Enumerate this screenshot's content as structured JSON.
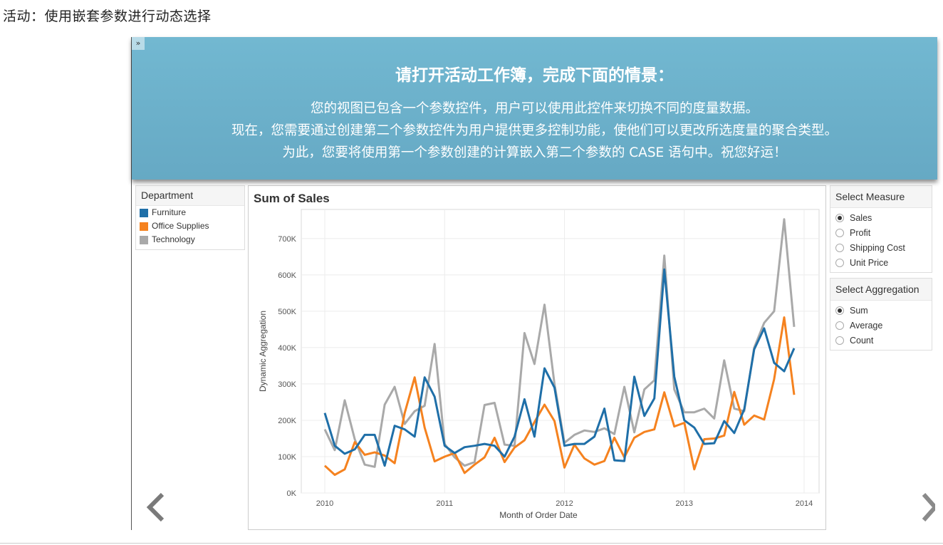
{
  "page": {
    "title": "活动：使用嵌套参数进行动态选择"
  },
  "banner": {
    "expand_glyph": "»",
    "heading": "请打开活动工作簿，完成下面的情景：",
    "lines": [
      "您的视图已包含一个参数控件，用户可以使用此控件来切换不同的度量数据。",
      "现在，您需要通过创建第二个参数控件为用户提供更多控制功能，使他们可以更改所选度量的聚合类型。",
      "为此，您要将使用第一个参数创建的计算嵌入第二个参数的 CASE 语句中。祝您好运！"
    ]
  },
  "legend": {
    "title": "Department",
    "items": [
      {
        "label": "Furniture",
        "color": "#1f6fa8"
      },
      {
        "label": "Office Supplies",
        "color": "#f5821f"
      },
      {
        "label": "Technology",
        "color": "#a9a9a9"
      }
    ]
  },
  "measure": {
    "title": "Select Measure",
    "options": [
      "Sales",
      "Profit",
      "Shipping Cost",
      "Unit Price"
    ],
    "selected": "Sales"
  },
  "aggregation": {
    "title": "Select Aggregation",
    "options": [
      "Sum",
      "Average",
      "Count"
    ],
    "selected": "Sum"
  },
  "nav": {
    "prev_icon": "chevron-left-icon",
    "next_icon": "chevron-right-icon"
  },
  "chart_data": {
    "type": "line",
    "title": "Sum of Sales",
    "xlabel": "Month of Order Date",
    "ylabel": "Dynamic Aggregation",
    "x_ticks": [
      "2010",
      "2011",
      "2012",
      "2013",
      "2014"
    ],
    "y_ticks": [
      "0K",
      "100K",
      "200K",
      "300K",
      "400K",
      "500K",
      "600K",
      "700K"
    ],
    "ylim": [
      0,
      780000
    ],
    "x": [
      "2010-01",
      "2010-02",
      "2010-03",
      "2010-04",
      "2010-05",
      "2010-06",
      "2010-07",
      "2010-08",
      "2010-09",
      "2010-10",
      "2010-11",
      "2010-12",
      "2011-01",
      "2011-02",
      "2011-03",
      "2011-04",
      "2011-05",
      "2011-06",
      "2011-07",
      "2011-08",
      "2011-09",
      "2011-10",
      "2011-11",
      "2011-12",
      "2012-01",
      "2012-02",
      "2012-03",
      "2012-04",
      "2012-05",
      "2012-06",
      "2012-07",
      "2012-08",
      "2012-09",
      "2012-10",
      "2012-11",
      "2012-12",
      "2013-01",
      "2013-02",
      "2013-03",
      "2013-04",
      "2013-05",
      "2013-06",
      "2013-07",
      "2013-08",
      "2013-09",
      "2013-10",
      "2013-11",
      "2013-12"
    ],
    "series": [
      {
        "name": "Furniture",
        "color": "#1f6fa8",
        "values": [
          220000,
          130000,
          108000,
          120000,
          160000,
          160000,
          75000,
          185000,
          175000,
          155000,
          318000,
          265000,
          130000,
          110000,
          126000,
          130000,
          135000,
          130000,
          100000,
          155000,
          258000,
          155000,
          343000,
          290000,
          130000,
          135000,
          135000,
          155000,
          232000,
          90000,
          88000,
          320000,
          212000,
          260000,
          615000,
          320000,
          200000,
          180000,
          135000,
          137000,
          198000,
          165000,
          230000,
          395000,
          453000,
          358000,
          335000,
          398000
        ]
      },
      {
        "name": "Office Supplies",
        "color": "#f5821f",
        "values": [
          75000,
          50000,
          65000,
          140000,
          105000,
          112000,
          103000,
          82000,
          220000,
          318000,
          180000,
          87000,
          100000,
          110000,
          55000,
          78000,
          98000,
          152000,
          85000,
          125000,
          145000,
          195000,
          243000,
          198000,
          70000,
          133000,
          95000,
          78000,
          88000,
          152000,
          98000,
          152000,
          168000,
          175000,
          277000,
          183000,
          193000,
          65000,
          148000,
          150000,
          158000,
          278000,
          188000,
          213000,
          202000,
          313000,
          483000,
          270000
        ]
      },
      {
        "name": "Technology",
        "color": "#a9a9a9",
        "values": [
          175000,
          118000,
          255000,
          148000,
          78000,
          72000,
          243000,
          292000,
          190000,
          225000,
          240000,
          410000,
          135000,
          98000,
          75000,
          85000,
          242000,
          248000,
          133000,
          130000,
          440000,
          355000,
          518000,
          300000,
          138000,
          160000,
          172000,
          168000,
          178000,
          162000,
          292000,
          167000,
          285000,
          310000,
          653000,
          285000,
          222000,
          222000,
          232000,
          205000,
          365000,
          232000,
          225000,
          400000,
          468000,
          500000,
          753000,
          457000
        ]
      }
    ]
  }
}
